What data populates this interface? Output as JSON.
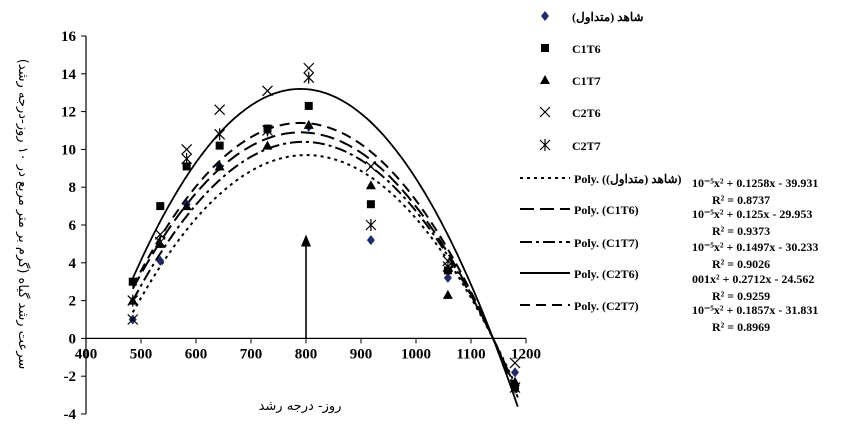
{
  "chart_data": {
    "type": "scatter",
    "title": "",
    "xlabel": "روز- درجه رشد",
    "ylabel": "سرعت رشد گیاه (گرم بر متر مربع در ۱۰ روز-درجه رشد)",
    "xlim": [
      400,
      1200
    ],
    "ylim": [
      -4,
      16
    ],
    "x_ticks": [
      "400",
      "500",
      "600",
      "700",
      "800",
      "900",
      "1000",
      "1100",
      "1200"
    ],
    "y_ticks": [
      "-4",
      "-2",
      "0",
      "2",
      "4",
      "6",
      "8",
      "10",
      "12",
      "14",
      "16"
    ],
    "grid": false,
    "legend_position": "right",
    "series": [
      {
        "name": "شاهد (متداول)",
        "marker": "diamond",
        "color": "#1f2a66",
        "points": [
          [
            485,
            1.0
          ],
          [
            535,
            4.1
          ],
          [
            583,
            7.1
          ],
          [
            643,
            9.1
          ],
          [
            730,
            11.0
          ],
          [
            805,
            11.2
          ],
          [
            918,
            5.2
          ],
          [
            1058,
            3.2
          ],
          [
            1180,
            -1.8
          ]
        ]
      },
      {
        "name": "C1T6",
        "marker": "square",
        "color": "#000000",
        "points": [
          [
            485,
            3.0
          ],
          [
            535,
            7.0
          ],
          [
            583,
            9.1
          ],
          [
            643,
            10.2
          ],
          [
            730,
            11.1
          ],
          [
            805,
            12.3
          ],
          [
            918,
            7.1
          ],
          [
            1058,
            3.6
          ],
          [
            1180,
            -2.6
          ]
        ]
      },
      {
        "name": "C1T7",
        "marker": "triangle",
        "color": "#000000",
        "points": [
          [
            485,
            2.0
          ],
          [
            535,
            5.0
          ],
          [
            583,
            7.0
          ],
          [
            643,
            9.1
          ],
          [
            730,
            10.2
          ],
          [
            805,
            11.3
          ],
          [
            918,
            8.1
          ],
          [
            1058,
            2.3
          ],
          [
            1180,
            -2.3
          ]
        ]
      },
      {
        "name": "C2T6",
        "marker": "x",
        "color": "#000000",
        "points": [
          [
            485,
            1.0
          ],
          [
            535,
            5.5
          ],
          [
            583,
            10.0
          ],
          [
            643,
            12.1
          ],
          [
            730,
            13.1
          ],
          [
            805,
            14.3
          ],
          [
            918,
            9.1
          ],
          [
            1058,
            4.1
          ],
          [
            1180,
            -1.3
          ]
        ]
      },
      {
        "name": "C2T7",
        "marker": "asterisk",
        "color": "#000000",
        "points": [
          [
            485,
            2.0
          ],
          [
            535,
            5.1
          ],
          [
            583,
            9.5
          ],
          [
            643,
            10.8
          ],
          [
            730,
            11.0
          ],
          [
            805,
            13.8
          ],
          [
            918,
            6.0
          ],
          [
            1058,
            3.8
          ],
          [
            1180,
            -2.6
          ]
        ]
      }
    ],
    "trendlines": [
      {
        "name": "Poly. (شاهد (متداول))",
        "style": "dotted",
        "peak": [
          800,
          9.7
        ],
        "zero": 1140
      },
      {
        "name": "Poly. (C1T6)",
        "style": "long-dash",
        "peak": [
          790,
          10.9
        ],
        "zero": 1140
      },
      {
        "name": "Poly. (C1T7)",
        "style": "dash-dot",
        "peak": [
          795,
          10.4
        ],
        "zero": 1140
      },
      {
        "name": "Poly. (C2T6)",
        "style": "solid",
        "peak": [
          790,
          13.2
        ],
        "zero": 1140
      },
      {
        "name": "Poly. (C2T7)",
        "style": "dash",
        "peak": [
          790,
          11.4
        ],
        "zero": 1140
      }
    ],
    "arrow": {
      "x": 800,
      "from": 0,
      "to": 5.5
    },
    "equations": [
      {
        "line1": "10⁻⁵x² + 0.1258x - 39.931",
        "line2": "R² = 0.8737"
      },
      {
        "line1": "10⁻⁵x² + 0.125x - 29.953",
        "line2": "R² = 0.9373"
      },
      {
        "line1": "10⁻⁵x² + 0.1497x - 30.233",
        "line2": "R² = 0.9026"
      },
      {
        "line1": "001x² + 0.2712x - 24.562",
        "line2": "R² = 0.9259"
      },
      {
        "line1": "10⁻⁵x² + 0.1857x - 31.831",
        "line2": "R² = 0.8969"
      }
    ]
  }
}
